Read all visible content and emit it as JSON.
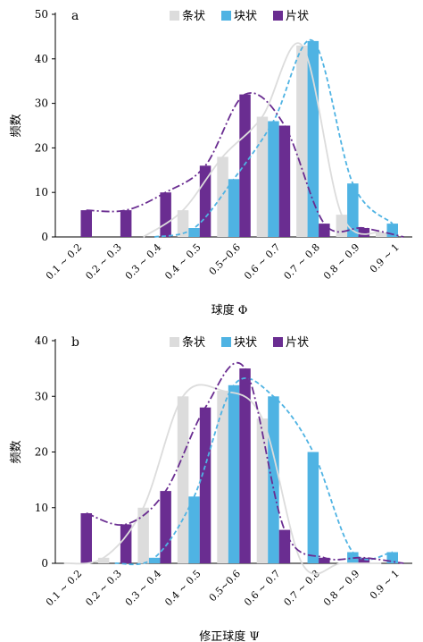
{
  "chart_data": [
    {
      "panel_label": "a",
      "type": "bar",
      "categories": [
        "0.1 ~ 0.2",
        "0.2 ~ 0.3",
        "0.3 ~ 0.4",
        "0.4 ~ 0.5",
        "0.5~0.6",
        "0.6 ~ 0.7",
        "0.7 ~ 0.8",
        "0.8 ~ 0.9",
        "0.9 ~ 1"
      ],
      "series": [
        {
          "name": "条状",
          "color": "#dcdcdc",
          "values": [
            0,
            0,
            0,
            6,
            18,
            27,
            43,
            5,
            1
          ]
        },
        {
          "name": "块状",
          "color": "#4fb3e3",
          "values": [
            0,
            0,
            0,
            2,
            13,
            26,
            44,
            12,
            3
          ]
        },
        {
          "name": "片状",
          "color": "#6a2d91",
          "values": [
            6,
            6,
            10,
            16,
            32,
            25,
            3,
            2,
            0
          ]
        }
      ],
      "trend_lines": [
        {
          "series": "条状",
          "style": "solid",
          "color": "#dcdcdc"
        },
        {
          "series": "块状",
          "style": "dashed",
          "color": "#4fb3e3"
        },
        {
          "series": "片状",
          "style": "dash-dot",
          "color": "#6a2d91"
        }
      ],
      "ylabel": "频数",
      "xlabel": "球度 Φ",
      "ylim": [
        0,
        50
      ],
      "yticks": [
        0,
        10,
        20,
        30,
        40,
        50
      ],
      "legend": "top"
    },
    {
      "panel_label": "b",
      "type": "bar",
      "categories": [
        "0.1 ~ 0.2",
        "0.2 ~ 0.3",
        "0.3 ~ 0.4",
        "0.4 ~ 0.5",
        "0.5~0.6",
        "0.6 ~ 0.7",
        "0.7 ~ 0.8",
        "0.8 ~ 0.9",
        "0.9 ~ 1"
      ],
      "series": [
        {
          "name": "条状",
          "color": "#dcdcdc",
          "values": [
            0,
            1,
            10,
            30,
            31,
            26,
            0,
            0,
            0
          ]
        },
        {
          "name": "块状",
          "color": "#4fb3e3",
          "values": [
            0,
            0,
            1,
            12,
            32,
            30,
            20,
            2,
            2
          ]
        },
        {
          "name": "片状",
          "color": "#6a2d91",
          "values": [
            9,
            7,
            13,
            28,
            35,
            6,
            1,
            1,
            0
          ]
        }
      ],
      "trend_lines": [
        {
          "series": "条状",
          "style": "solid",
          "color": "#dcdcdc"
        },
        {
          "series": "块状",
          "style": "dashed",
          "color": "#4fb3e3"
        },
        {
          "series": "片状",
          "style": "dash-dot",
          "color": "#6a2d91"
        }
      ],
      "ylabel": "频数",
      "xlabel": "修正球度 Ψ",
      "ylim": [
        0,
        40
      ],
      "yticks": [
        0,
        10,
        20,
        30,
        40
      ],
      "legend": "top"
    }
  ]
}
